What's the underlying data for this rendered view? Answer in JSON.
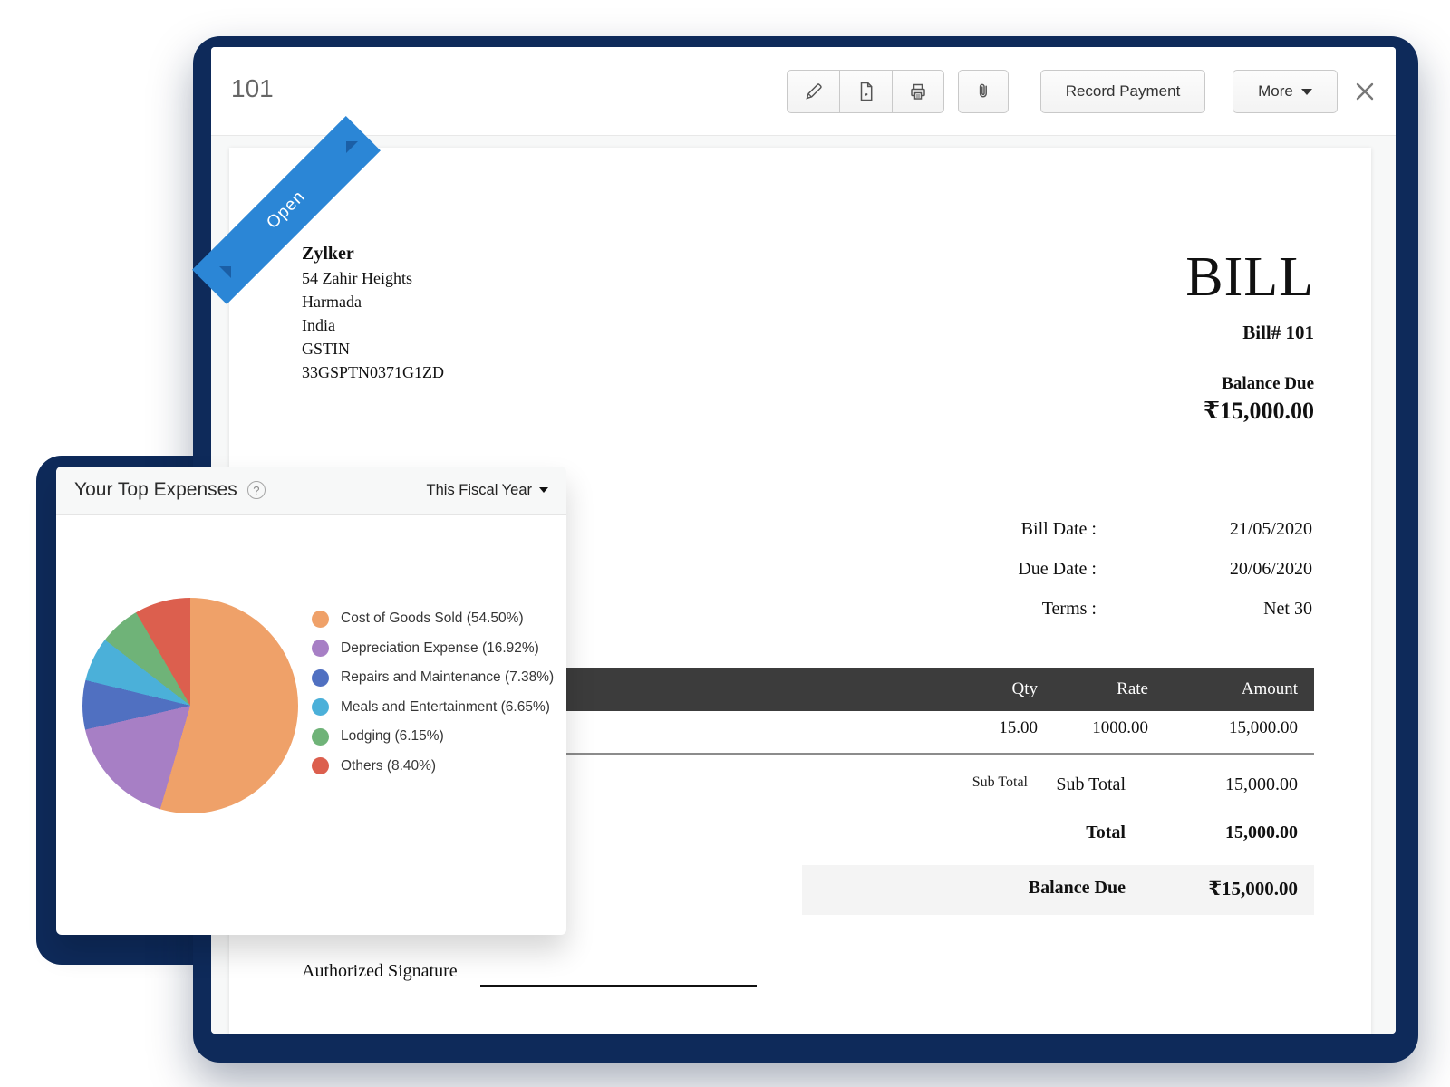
{
  "window": {
    "title": "101",
    "toolbar": {
      "record_payment_label": "Record Payment",
      "more_label": "More",
      "icons": [
        "edit-pencil",
        "pdf-export",
        "print",
        "attach-file",
        "close"
      ]
    }
  },
  "bill": {
    "status_ribbon": "Open",
    "vendor_name": "Zylker",
    "vendor_address_lines": [
      "54 Zahir Heights",
      "Harmada",
      "India",
      "GSTIN",
      "33GSPTN0371G1ZD"
    ],
    "doc_title": "BILL",
    "bill_number": "Bill# 101",
    "balance_due_label": "Balance Due",
    "balance_due_amount": "₹15,000.00",
    "meta": [
      {
        "label": "Bill Date :",
        "value": "21/05/2020"
      },
      {
        "label": "Due Date :",
        "value": "20/06/2020"
      },
      {
        "label": "Terms :",
        "value": "Net 30"
      }
    ],
    "table": {
      "headers": [
        "Qty",
        "Rate",
        "Amount"
      ],
      "rows": [
        [
          "15.00",
          "1000.00",
          "15,000.00"
        ]
      ]
    },
    "totals": {
      "sub_total_caption": "Sub Total",
      "sub_total_label": "Sub Total",
      "sub_total_value": "15,000.00",
      "total_label": "Total",
      "total_value": "15,000.00",
      "balance_due_label": "Balance Due",
      "balance_due_value": "₹15,000.00"
    },
    "signature_label": "Authorized Signature"
  },
  "expenses_card": {
    "title": "Your Top Expenses",
    "period_label": "This Fiscal Year",
    "help_icon": "question-circle"
  },
  "chart_data": {
    "type": "pie",
    "title": "Your Top Expenses",
    "period": "This Fiscal Year",
    "direction": "clockwise",
    "start_angle_deg": 0,
    "legend_position": "right",
    "legend_label_format": "{label} ({pct}%)",
    "slices": [
      {
        "label": "Cost of Goods Sold",
        "pct": 54.5,
        "color": "#EFA169"
      },
      {
        "label": "Depreciation Expense",
        "pct": 16.92,
        "color": "#A77FC5"
      },
      {
        "label": "Repairs and Maintenance",
        "pct": 7.38,
        "color": "#5070C1"
      },
      {
        "label": "Meals and Entertainment",
        "pct": 6.65,
        "color": "#4BB0D9"
      },
      {
        "label": "Lodging",
        "pct": 6.15,
        "color": "#6FB378"
      },
      {
        "label": "Others",
        "pct": 8.4,
        "color": "#DC5F4E"
      }
    ]
  },
  "colors": {
    "window_frame": "#0E2A5A",
    "ribbon": "#2B86D6",
    "ribbon_fold": "#1B5FA6",
    "table_header_bg": "#3C3C3C",
    "balance_row_bg": "#F4F4F4"
  }
}
